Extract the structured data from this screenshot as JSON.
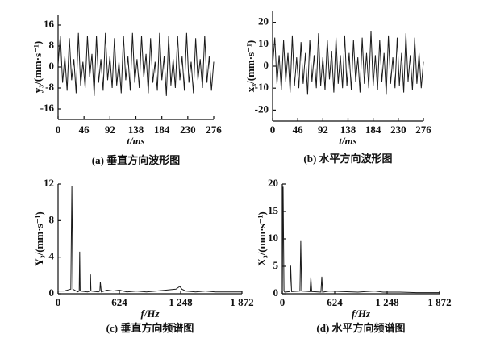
{
  "chart_data": [
    {
      "type": "line",
      "title": "(a) 垂直方向波形图",
      "xlabel": "t/ms",
      "ylabel": "y₃/(mm·s⁻¹)",
      "x": [
        0,
        4,
        8,
        12,
        16,
        20,
        24,
        28,
        32,
        36,
        40,
        44,
        48,
        52,
        56,
        60,
        64,
        68,
        72,
        76,
        80,
        84,
        88,
        92,
        96,
        100,
        104,
        108,
        112,
        116,
        120,
        124,
        128,
        132,
        136,
        140,
        144,
        148,
        152,
        156,
        160,
        164,
        168,
        172,
        176,
        180,
        184,
        188,
        192,
        196,
        200,
        204,
        208,
        212,
        216,
        220,
        224,
        228,
        232,
        236,
        240,
        244,
        248,
        252,
        256,
        260,
        264,
        268,
        272,
        276
      ],
      "series": [
        {
          "color": "#1a1a1a",
          "values": [
            1,
            12,
            -6,
            4,
            -9,
            11,
            -5,
            3,
            -10,
            13,
            -7,
            2,
            -8,
            12,
            -4,
            5,
            -11,
            12,
            -6,
            3,
            -9,
            13,
            -5,
            4,
            -8,
            11,
            -7,
            2,
            -10,
            12,
            -5,
            4,
            -9,
            13,
            -6,
            3,
            -8,
            12,
            -4,
            5,
            -10,
            11,
            -6,
            2,
            -9,
            13,
            -5,
            4,
            -11,
            12,
            -7,
            3,
            -8,
            12,
            -5,
            4,
            -9,
            13,
            -6,
            2,
            -10,
            11,
            -5,
            3,
            -8,
            12,
            -6,
            4,
            -9,
            2
          ]
        }
      ],
      "xlim": [
        0,
        276
      ],
      "xticks": [
        0,
        46,
        92,
        138,
        184,
        230,
        276
      ],
      "ylim": [
        -20,
        20
      ],
      "yticks": [
        -16,
        -8,
        0,
        8,
        16
      ]
    },
    {
      "type": "line",
      "title": "(b) 水平方向波形图",
      "xlabel": "t/ms",
      "ylabel": "x₃/(mm·s⁻¹)",
      "x": [
        0,
        4,
        8,
        12,
        16,
        20,
        24,
        28,
        32,
        36,
        40,
        44,
        48,
        52,
        56,
        60,
        64,
        68,
        72,
        76,
        80,
        84,
        88,
        92,
        96,
        100,
        104,
        108,
        112,
        116,
        120,
        124,
        128,
        132,
        136,
        140,
        144,
        148,
        152,
        156,
        160,
        164,
        168,
        172,
        176,
        180,
        184,
        188,
        192,
        196,
        200,
        204,
        208,
        212,
        216,
        220,
        224,
        228,
        232,
        236,
        240,
        244,
        248,
        252,
        256,
        260,
        264,
        268,
        272,
        276
      ],
      "series": [
        {
          "color": "#1a1a1a",
          "values": [
            0,
            13,
            -8,
            5,
            -11,
            12,
            -7,
            6,
            -12,
            14,
            -9,
            4,
            -10,
            11,
            -8,
            6,
            -13,
            12,
            -7,
            5,
            -10,
            15,
            -9,
            4,
            -11,
            12,
            -6,
            7,
            -12,
            13,
            -8,
            5,
            -10,
            14,
            -9,
            6,
            -11,
            12,
            -7,
            4,
            -12,
            13,
            -8,
            6,
            -10,
            16,
            -9,
            5,
            -11,
            12,
            -7,
            6,
            -13,
            14,
            -8,
            4,
            -10,
            13,
            -9,
            6,
            -12,
            15,
            -7,
            5,
            -11,
            13,
            -8,
            6,
            -10,
            2
          ]
        }
      ],
      "xlim": [
        0,
        276
      ],
      "xticks": [
        0,
        46,
        92,
        138,
        184,
        230,
        276
      ],
      "ylim": [
        -25,
        25
      ],
      "yticks": [
        -20,
        -10,
        0,
        10,
        20
      ]
    },
    {
      "type": "line",
      "title": "(c) 垂直方向频谱图",
      "xlabel": "f/Hz",
      "ylabel": "Y₃/(mm·s⁻¹)",
      "x": [
        0,
        60,
        130,
        140,
        150,
        200,
        215,
        220,
        225,
        300,
        325,
        330,
        335,
        410,
        425,
        430,
        440,
        500,
        560,
        624,
        700,
        800,
        900,
        1000,
        1100,
        1200,
        1240,
        1260,
        1300,
        1400,
        1500,
        1600,
        1700,
        1800,
        1872
      ],
      "series": [
        {
          "color": "#1a1a1a",
          "values": [
            0.3,
            0.3,
            0.5,
            11.8,
            0.5,
            0.2,
            0.3,
            4.6,
            0.3,
            0.2,
            0.3,
            2.1,
            0.3,
            0.2,
            0.3,
            1.3,
            0.2,
            0.4,
            0.3,
            0.4,
            0.2,
            0.3,
            0.2,
            0.3,
            0.4,
            0.5,
            0.8,
            0.5,
            0.3,
            0.2,
            0.3,
            0.2,
            0.2,
            0.2,
            0.2
          ]
        }
      ],
      "xlim": [
        0,
        1872
      ],
      "xticks": [
        0,
        624,
        {
          "value": 1248,
          "label": "1 248"
        },
        {
          "value": 1872,
          "label": "1 872"
        }
      ],
      "ylim": [
        0,
        12
      ],
      "yticks": [
        0,
        4,
        8,
        12
      ]
    },
    {
      "type": "line",
      "title": "(d) 水平方向频谱图",
      "xlabel": "f/Hz",
      "ylabel": "X₃/(mm·s⁻¹)",
      "x": [
        0,
        10,
        20,
        30,
        90,
        100,
        110,
        210,
        220,
        230,
        330,
        340,
        350,
        460,
        470,
        480,
        560,
        700,
        900,
        1000,
        1100,
        1200,
        1400,
        1600,
        1800,
        1872
      ],
      "series": [
        {
          "color": "#1a1a1a",
          "values": [
            0.5,
            19.5,
            0.5,
            0.3,
            0.4,
            5.1,
            0.4,
            0.5,
            9.6,
            0.5,
            0.4,
            3,
            0.4,
            0.3,
            3.1,
            0.3,
            0.5,
            0.4,
            0.3,
            0.4,
            0.5,
            0.3,
            0.3,
            0.2,
            0.2,
            0.2
          ]
        }
      ],
      "xlim": [
        0,
        1872
      ],
      "xticks": [
        0,
        624,
        {
          "value": 1248,
          "label": "1 248"
        },
        {
          "value": 1872,
          "label": "1 872"
        }
      ],
      "ylim": [
        0,
        20
      ],
      "yticks": [
        0,
        5,
        10,
        15,
        20
      ]
    }
  ]
}
